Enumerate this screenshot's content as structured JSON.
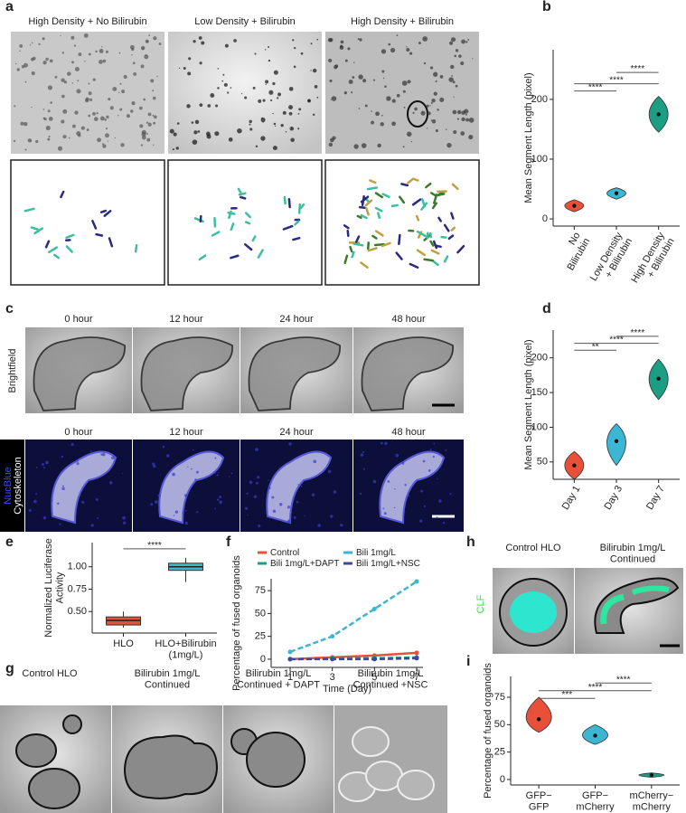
{
  "figure": {
    "a": {
      "label": "a",
      "titles": [
        "High Density + No Bilirubin",
        "Low Density + Bilirubin",
        "High Density + Bilirubin"
      ]
    },
    "c": {
      "label": "c",
      "times": [
        "0 hour",
        "12 hour",
        "24 hour",
        "48 hour"
      ],
      "times_fluorescence": [
        "0 hour",
        "12 hour",
        "24 hour",
        "48 hour"
      ],
      "row_label": "Brightfield",
      "stain_labels": [
        "NucBlue",
        "Cytoskeleton"
      ]
    },
    "g": {
      "label": "g",
      "titles": [
        "Control HLO",
        "Bilirubin 1mg/L\nContinued",
        "Bilirubin 1mg/L\nContinued + DAPT",
        "Bilirubin 1mg/L\nContinued +NSC"
      ]
    },
    "h": {
      "label": "h",
      "titles": [
        "Control HLO",
        "Bilirubin 1mg/L\nContinued"
      ],
      "channel": "CLF"
    }
  },
  "chart_data": [
    {
      "type": "violin",
      "panel": "b",
      "ylabel": "Mean Segment Length (pixel)",
      "categories": [
        "No\nBilirubin",
        "Low Density\n+ Bilirubin",
        "High Density\n+ Bilirubin"
      ],
      "values": [
        22,
        43,
        175
      ],
      "ranges": [
        [
          12,
          32
        ],
        [
          33,
          52
        ],
        [
          145,
          205
        ]
      ],
      "colors": [
        "#e8503a",
        "#3bb6d3",
        "#1a9e84"
      ],
      "ylim": [
        -12,
        283
      ],
      "yticks": [
        0,
        100,
        200
      ],
      "annotations": [
        {
          "text": "****",
          "from": 1,
          "to": 2,
          "y": 245
        },
        {
          "text": "****",
          "from": 0,
          "to": 2,
          "y": 226
        },
        {
          "text": "****",
          "from": 0,
          "to": 1,
          "y": 214
        }
      ]
    },
    {
      "type": "violin",
      "panel": "d",
      "ylabel": "Mean Segment Length (pixel)",
      "categories": [
        "Day 1",
        "Day 3",
        "Day 7"
      ],
      "values": [
        45,
        80,
        170
      ],
      "ranges": [
        [
          25,
          65
        ],
        [
          45,
          105
        ],
        [
          140,
          198
        ]
      ],
      "colors": [
        "#e8503a",
        "#3bb6d3",
        "#1a9e84"
      ],
      "ylim": [
        25,
        240
      ],
      "yticks": [
        50,
        100,
        150,
        200
      ],
      "annotations": [
        {
          "text": "****",
          "from": 1,
          "to": 2,
          "y": 231
        },
        {
          "text": "****",
          "from": 0,
          "to": 2,
          "y": 221
        },
        {
          "text": "**",
          "from": 0,
          "to": 1,
          "y": 211
        }
      ]
    },
    {
      "type": "box",
      "panel": "e",
      "ylabel": "Normalized Luciferase\nActivity",
      "categories": [
        "HLO",
        "HLO+Bilirubin\n(1mg/L)"
      ],
      "medians": [
        0.4,
        1.0
      ],
      "q1": [
        0.35,
        0.96
      ],
      "q3": [
        0.44,
        1.04
      ],
      "mins": [
        0.32,
        0.83
      ],
      "maxs": [
        0.5,
        1.1
      ],
      "colors": [
        "#e8503a",
        "#3bb6d3"
      ],
      "ylim": [
        0.26,
        1.27
      ],
      "yticks": [
        {
          "value": 0.5,
          "label": "0.50"
        },
        {
          "value": 0.75,
          "label": "0.75"
        },
        {
          "value": 1.0,
          "label": "1.00"
        }
      ],
      "annotations": [
        {
          "text": "****",
          "from": 0,
          "to": 1,
          "y": 1.2
        }
      ]
    },
    {
      "type": "line",
      "panel": "f",
      "ylabel": "Percentage of fused organoids",
      "xlabel": "Time (Day)",
      "x": [
        1,
        3,
        5,
        7
      ],
      "series": [
        {
          "name": "Control",
          "color": "#e8503a",
          "values": [
            0,
            2,
            4,
            7
          ]
        },
        {
          "name": "Bili 1mg/L",
          "color": "#3bb6d3",
          "values": [
            8,
            25,
            55,
            85
          ]
        },
        {
          "name": "Bili 1mg/L+DAPT",
          "color": "#1a9e84",
          "values": [
            0,
            1,
            1,
            2
          ]
        },
        {
          "name": "Bili 1mg/L+NSC",
          "color": "#3b4a9e",
          "values": [
            0,
            0,
            0,
            1
          ]
        }
      ],
      "xlim": [
        0.1,
        7.3
      ],
      "xticks": [
        1,
        3,
        5,
        7
      ],
      "ylim": [
        -9,
        88
      ],
      "yticks": [
        0,
        25,
        50,
        75
      ]
    },
    {
      "type": "violin",
      "panel": "i",
      "ylabel": "Percentage of fused organoids",
      "categories": [
        "GFP−\nGFP",
        "GFP−\nmCherry",
        "mCherry−\nmCherry"
      ],
      "values": [
        55,
        40,
        4
      ],
      "ranges": [
        [
          43,
          75
        ],
        [
          32,
          50
        ],
        [
          2,
          6
        ]
      ],
      "colors": [
        "#e8503a",
        "#3bb6d3",
        "#1a9e84"
      ],
      "ylim": [
        -5,
        94
      ],
      "yticks": [
        0,
        25,
        50,
        75
      ],
      "annotations": [
        {
          "text": "****",
          "from": 1,
          "to": 2,
          "y": 88
        },
        {
          "text": "****",
          "from": 0,
          "to": 2,
          "y": 81
        },
        {
          "text": "***",
          "from": 0,
          "to": 1,
          "y": 74
        }
      ]
    }
  ]
}
